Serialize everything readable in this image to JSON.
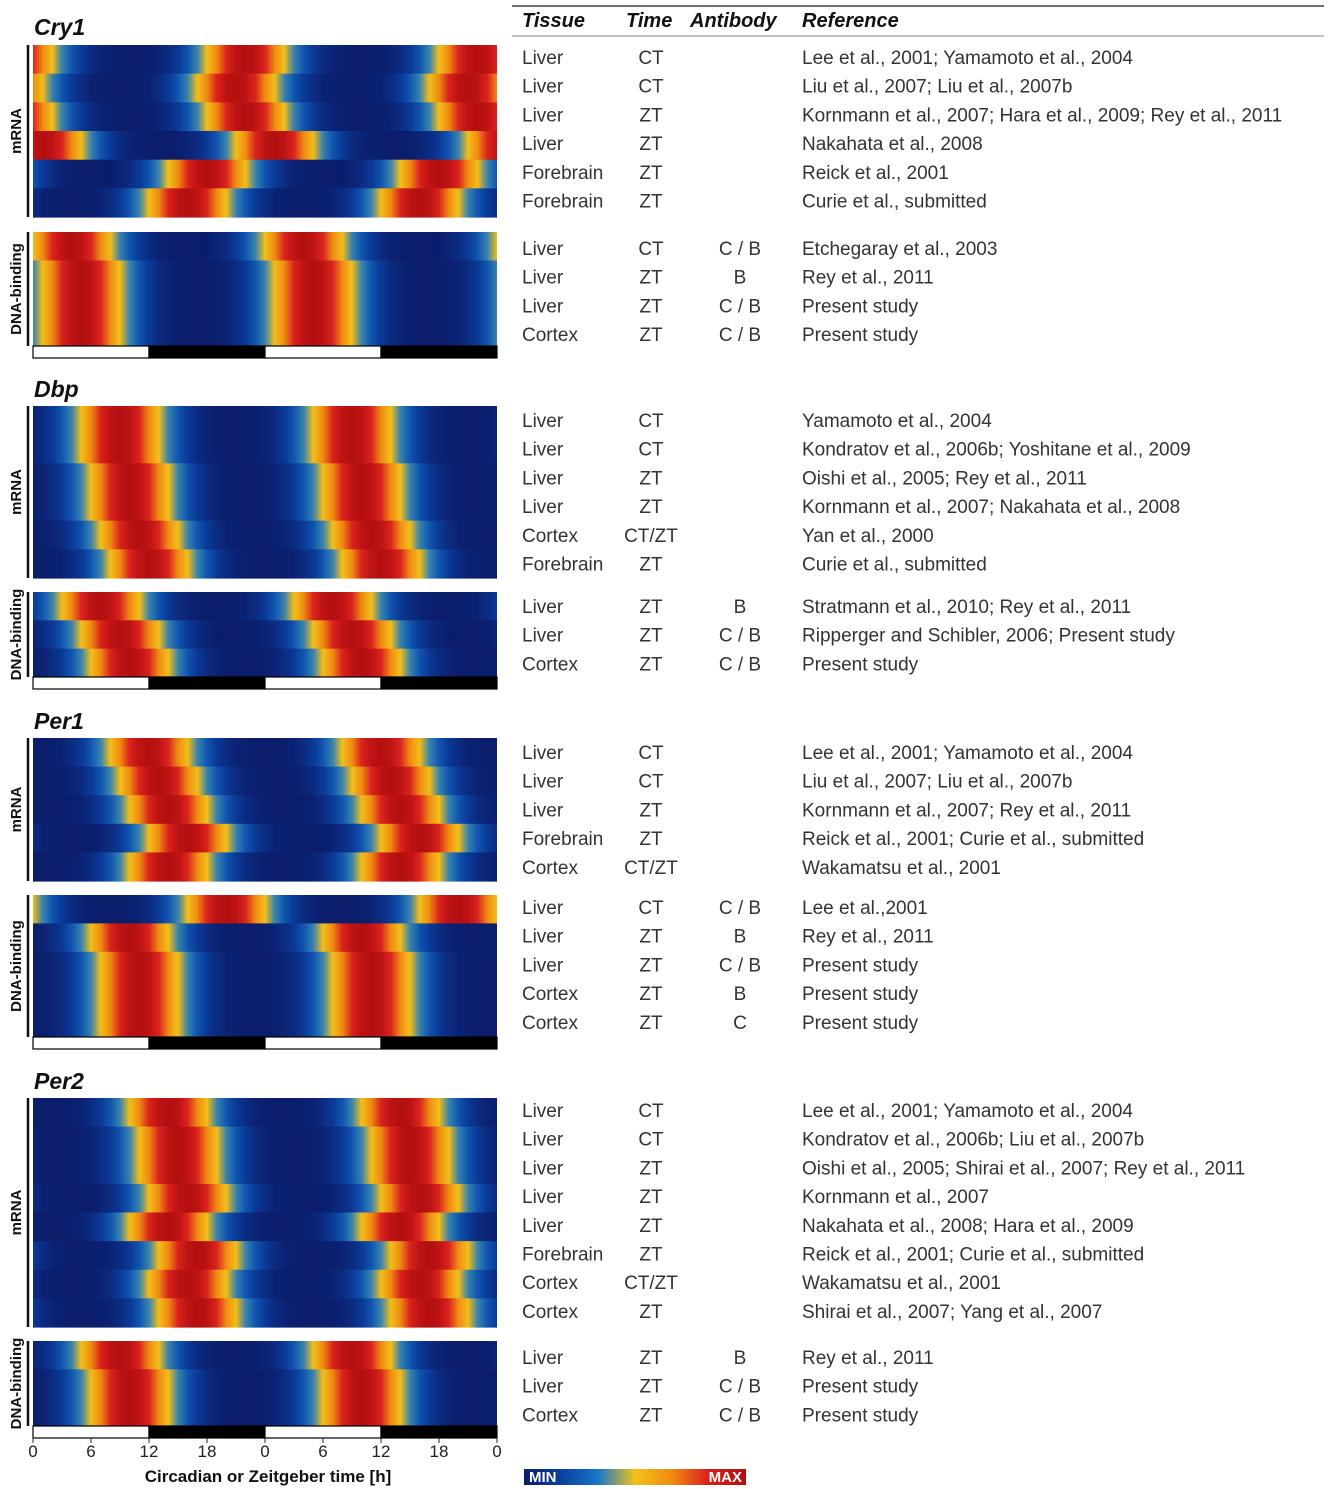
{
  "table_headers": {
    "tissue": "Tissue",
    "time": "Time",
    "antibody": "Antibody",
    "reference": "Reference"
  },
  "row_label_mrna": "mRNA",
  "row_label_dna": "DNA-binding",
  "x_axis": {
    "title": "Circadian or Zeitgeber time [h]",
    "ticks": [
      "0",
      "6",
      "12",
      "18",
      "0",
      "6",
      "12",
      "18",
      "0"
    ],
    "range": [
      0,
      48
    ]
  },
  "light_dark_bar": [
    "light",
    "dark",
    "light",
    "dark"
  ],
  "legend": {
    "min_label": "MIN",
    "max_label": "MAX",
    "colors": [
      "#0b1d6b",
      "#0a3fa0",
      "#1677c9",
      "#f2c21a",
      "#f08a12",
      "#d91e1e",
      "#b30f10"
    ]
  },
  "chart_data": [
    {
      "type": "heatmap",
      "title": "Cry1",
      "mrna_rows": [
        {
          "tissue": "Liver",
          "time": "CT",
          "antibody": "",
          "reference": "Lee et al., 2001; Yamamoto et al., 2004",
          "peak": 22
        },
        {
          "tissue": "Liver",
          "time": "CT",
          "antibody": "",
          "reference": "Liu et al., 2007; Liu et al., 2007b",
          "peak": 21
        },
        {
          "tissue": "Liver",
          "time": "ZT",
          "antibody": "",
          "reference": "Kornmann et al., 2007; Hara et al., 2009; Rey et al., 2011",
          "peak": 22
        },
        {
          "tissue": "Liver",
          "time": "ZT",
          "antibody": "",
          "reference": "Nakahata et al., 2008",
          "peak": 1
        },
        {
          "tissue": "Forebrain",
          "time": "ZT",
          "antibody": "",
          "reference": "Reick et al., 2001",
          "peak": 18
        },
        {
          "tissue": "Forebrain",
          "time": "ZT",
          "antibody": "",
          "reference": "Curie et al., submitted",
          "peak": 16
        }
      ],
      "dna_rows": [
        {
          "tissue": "Liver",
          "time": "CT",
          "antibody": "C / B",
          "reference": "Etchegaray et al., 2003",
          "peak": 4
        },
        {
          "tissue": "Liver",
          "time": "ZT",
          "antibody": "B",
          "reference": "Rey et al., 2011",
          "peak": 5
        },
        {
          "tissue": "Liver",
          "time": "ZT",
          "antibody": "C / B",
          "reference": "Present study",
          "peak": 5
        },
        {
          "tissue": "Cortex",
          "time": "ZT",
          "antibody": "C / B",
          "reference": "Present study",
          "peak": 5
        }
      ]
    },
    {
      "type": "heatmap",
      "title": "Dbp",
      "mrna_rows": [
        {
          "tissue": "Liver",
          "time": "CT",
          "antibody": "",
          "reference": "Yamamoto et al., 2004",
          "peak": 9
        },
        {
          "tissue": "Liver",
          "time": "CT",
          "antibody": "",
          "reference": "Kondratov et al., 2006b;  Yoshitane et al., 2009",
          "peak": 9
        },
        {
          "tissue": "Liver",
          "time": "ZT",
          "antibody": "",
          "reference": "Oishi et al., 2005;  Rey et al., 2011",
          "peak": 10
        },
        {
          "tissue": "Liver",
          "time": "ZT",
          "antibody": "",
          "reference": "Kornmann et al., 2007; Nakahata et al., 2008",
          "peak": 10
        },
        {
          "tissue": "Cortex",
          "time": "CT/ZT",
          "antibody": "",
          "reference": "Yan et al., 2000",
          "peak": 11
        },
        {
          "tissue": "Forebrain",
          "time": "ZT",
          "antibody": "",
          "reference": "Curie et al., submitted",
          "peak": 12
        }
      ],
      "dna_rows": [
        {
          "tissue": "Liver",
          "time": "ZT",
          "antibody": "B",
          "reference": "Stratmann et al., 2010; Rey et al., 2011",
          "peak": 7
        },
        {
          "tissue": "Liver",
          "time": "ZT",
          "antibody": "C / B",
          "reference": "Ripperger and Schibler, 2006; Present study",
          "peak": 9
        },
        {
          "tissue": "Cortex",
          "time": "ZT",
          "antibody": "C / B",
          "reference": "Present study",
          "peak": 10
        }
      ]
    },
    {
      "type": "heatmap",
      "title": "Per1",
      "mrna_rows": [
        {
          "tissue": "Liver",
          "time": "CT",
          "antibody": "",
          "reference": "Lee et al., 2001; Yamamoto et al., 2004",
          "peak": 12
        },
        {
          "tissue": "Liver",
          "time": "CT",
          "antibody": "",
          "reference": "Liu et al., 2007; Liu et al., 2007b",
          "peak": 13
        },
        {
          "tissue": "Liver",
          "time": "ZT",
          "antibody": "",
          "reference": "Kornmann et al., 2007; Rey et al., 2011",
          "peak": 14
        },
        {
          "tissue": "Forebrain",
          "time": "ZT",
          "antibody": "",
          "reference": "Reick et al., 2001; Curie et al., submitted",
          "peak": 16
        },
        {
          "tissue": "Cortex",
          "time": "CT/ZT",
          "antibody": "",
          "reference": "Wakamatsu et al., 2001",
          "peak": 14
        }
      ],
      "dna_rows": [
        {
          "tissue": "Liver",
          "time": "CT",
          "antibody": "C / B",
          "reference": "Lee et al.,2001",
          "peak": 20
        },
        {
          "tissue": "Liver",
          "time": "ZT",
          "antibody": "B",
          "reference": "Rey et al., 2011",
          "peak": 10
        },
        {
          "tissue": "Liver",
          "time": "ZT",
          "antibody": "C / B",
          "reference": "Present study",
          "peak": 11
        },
        {
          "tissue": "Cortex",
          "time": "ZT",
          "antibody": "B",
          "reference": "Present study",
          "peak": 11
        },
        {
          "tissue": "Cortex",
          "time": "ZT",
          "antibody": "C",
          "reference": "Present study",
          "peak": 11
        }
      ]
    },
    {
      "type": "heatmap",
      "title": "Per2",
      "mrna_rows": [
        {
          "tissue": "Liver",
          "time": "CT",
          "antibody": "",
          "reference": "Lee et al., 2001;  Yamamoto et al., 2004",
          "peak": 14
        },
        {
          "tissue": "Liver",
          "time": "CT",
          "antibody": "",
          "reference": "Kondratov et al., 2006b; Liu et al., 2007b",
          "peak": 15
        },
        {
          "tissue": "Liver",
          "time": "ZT",
          "antibody": "",
          "reference": "Oishi et al., 2005; Shirai et al., 2007; Rey et al., 2011",
          "peak": 15
        },
        {
          "tissue": "Liver",
          "time": "ZT",
          "antibody": "",
          "reference": "Kornmann et al., 2007",
          "peak": 16
        },
        {
          "tissue": "Liver",
          "time": "ZT",
          "antibody": "",
          "reference": "Nakahata et al., 2008; Hara et al., 2009",
          "peak": 14
        },
        {
          "tissue": "Forebrain",
          "time": "ZT",
          "antibody": "",
          "reference": "Reick et al., 2001; Curie et al., submitted",
          "peak": 17
        },
        {
          "tissue": "Cortex",
          "time": "CT/ZT",
          "antibody": "",
          "reference": "Wakamatsu et al., 2001",
          "peak": 16
        },
        {
          "tissue": "Cortex",
          "time": "ZT",
          "antibody": "",
          "reference": "Shirai et al., 2007; Yang et al., 2007",
          "peak": 17
        }
      ],
      "dna_rows": [
        {
          "tissue": "Liver",
          "time": "ZT",
          "antibody": "B",
          "reference": "Rey et al., 2011",
          "peak": 9
        },
        {
          "tissue": "Liver",
          "time": "ZT",
          "antibody": "C / B",
          "reference": "Present study",
          "peak": 10
        },
        {
          "tissue": "Cortex",
          "time": "ZT",
          "antibody": "C / B",
          "reference": "Present study",
          "peak": 10
        }
      ]
    }
  ]
}
